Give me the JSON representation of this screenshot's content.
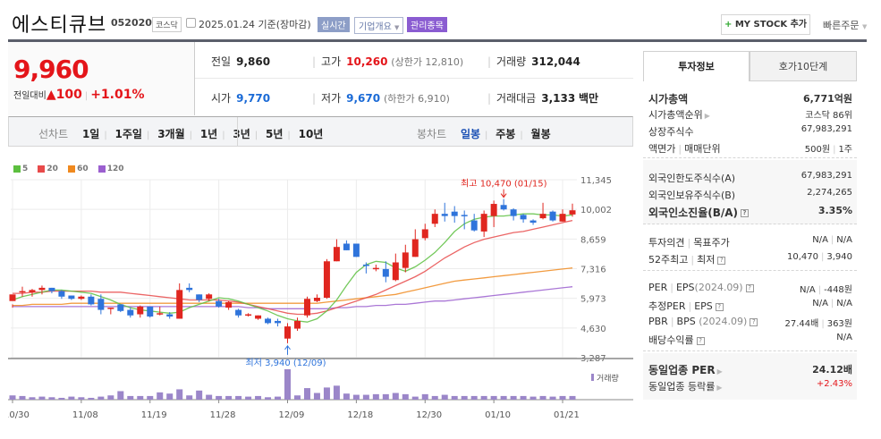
{
  "header": {
    "stock_name": "에스티큐브",
    "stock_code": "052020",
    "market": "코스닥",
    "date_label": "2025.01.24 기준(장마감)",
    "tag_realtime": "실시간",
    "tag_company": "기업개요",
    "tag_managed": "관리종목",
    "mystock_plus": "+",
    "mystock_label": "MY STOCK 추가",
    "quick_order": "빠른주문"
  },
  "price": {
    "current": "9,960",
    "change_label": "전일대비",
    "change_arrow": "▲",
    "change_value": "100",
    "change_pct": "+1.01%"
  },
  "stats": {
    "prev_close_label": "전일",
    "prev_close": "9,860",
    "high_label": "고가",
    "high": "10,260",
    "upper_limit": "(상한가 12,810)",
    "volume_label": "거래량",
    "volume": "312,044",
    "open_label": "시가",
    "open": "9,770",
    "low_label": "저가",
    "low": "9,670",
    "lower_limit": "(하한가 6,910)",
    "amount_label": "거래대금",
    "amount": "3,133",
    "amount_unit": "백만"
  },
  "range": {
    "line_label": "선차트",
    "line_items": [
      "1일",
      "1주일",
      "3개월",
      "1년",
      "3년",
      "5년",
      "10년"
    ],
    "candle_label": "봉차트",
    "candle_items": [
      "일봉",
      "주봉",
      "월봉"
    ],
    "candle_selected": 0
  },
  "side": {
    "tab_invest": "투자정보",
    "tab_orderbook": "호가10단계",
    "market_cap_label": "시가총액",
    "market_cap": "6,771억원",
    "cap_rank_label": "시가총액순위",
    "cap_rank": "코스닥 86위",
    "shares_label": "상장주식수",
    "shares": "67,983,291",
    "face_label": "액면가",
    "unit_label": "매매단위",
    "face_value": "500원",
    "unit_value": "1주",
    "foreign_limit_label": "외국인한도주식수(A)",
    "foreign_limit": "67,983,291",
    "foreign_hold_label": "외국인보유주식수(B)",
    "foreign_hold": "2,274,265",
    "foreign_ratio_label": "외국인소진율(B/A)",
    "foreign_ratio": "3.35%",
    "opinion_label": "투자의견",
    "target_label": "목표주가",
    "opinion": "N/A",
    "target": "N/A",
    "w52_high_label": "52주최고",
    "w52_low_label": "최저",
    "w52_high": "10,470",
    "w52_low": "3,940",
    "per_label": "PER",
    "eps_label": "EPS",
    "per_date": "(2024.09)",
    "per": "N/A",
    "eps": "-448원",
    "est_per_label": "추정PER",
    "est_eps_label": "EPS",
    "est_per": "N/A",
    "est_eps": "N/A",
    "pbr_label": "PBR",
    "bps_label": "BPS",
    "pbr_date": "(2024.09)",
    "pbr": "27.44배",
    "bps": "363원",
    "div_label": "배당수익률",
    "div": "N/A",
    "sector_per_label": "동일업종 PER",
    "sector_per": "24.12배",
    "sector_chg_label": "동일업종 등락률",
    "sector_chg": "+2.43%"
  },
  "chart_data": {
    "type": "candlestick",
    "title": "에스티큐브 일봉",
    "legend": [
      {
        "name": "5",
        "color": "#5cbf3f"
      },
      {
        "name": "20",
        "color": "#e84a4a"
      },
      {
        "name": "60",
        "color": "#f0891e"
      },
      {
        "name": "120",
        "color": "#9b5fcf"
      }
    ],
    "y_ticks": [
      "11,345",
      "10,002",
      "8,659",
      "7,316",
      "5,973",
      "4,630",
      "3,287"
    ],
    "y_range": [
      3287,
      11345
    ],
    "x_ticks": [
      {
        "label": "10/30",
        "index": 0
      },
      {
        "label": "11/08",
        "index": 7
      },
      {
        "label": "11/19",
        "index": 14
      },
      {
        "label": "11/28",
        "index": 21
      },
      {
        "label": "12/09",
        "index": 28
      },
      {
        "label": "12/18",
        "index": 35
      },
      {
        "label": "12/30",
        "index": 42
      },
      {
        "label": "01/10",
        "index": 49
      },
      {
        "label": "01/21",
        "index": 56
      }
    ],
    "high_annotation": "최고 10,470 (01/15)",
    "low_annotation": "최저 3,940 (12/09)",
    "volume_label": "거래량",
    "candles": [
      [
        5850,
        6150,
        5700,
        5550
      ],
      [
        6250,
        6300,
        6500,
        6050
      ],
      [
        6250,
        6350,
        6400,
        6050
      ],
      [
        6350,
        6450,
        6550,
        6150
      ],
      [
        6450,
        6300,
        6450,
        6200
      ],
      [
        6300,
        6050,
        6350,
        5950
      ],
      [
        6100,
        5950,
        6100,
        5900
      ],
      [
        5950,
        6050,
        6100,
        5900
      ],
      [
        6050,
        5700,
        6150,
        5650
      ],
      [
        5950,
        5450,
        6150,
        5250
      ],
      [
        5550,
        5550,
        5550,
        5250
      ],
      [
        5700,
        5400,
        5700,
        5350
      ],
      [
        5450,
        5200,
        5550,
        5100
      ],
      [
        5250,
        5600,
        5650,
        5100
      ],
      [
        5600,
        5150,
        5600,
        5100
      ],
      [
        5300,
        5300,
        5600,
        5200
      ],
      [
        5250,
        5150,
        5350,
        5050
      ],
      [
        5050,
        6350,
        6650,
        5050
      ],
      [
        6450,
        6350,
        6650,
        6250
      ],
      [
        6150,
        5900,
        6150,
        5800
      ],
      [
        5950,
        6150,
        6200,
        5850
      ],
      [
        5850,
        5600,
        5950,
        5550
      ],
      [
        5550,
        5800,
        5850,
        5450
      ],
      [
        5450,
        5200,
        5500,
        5100
      ],
      [
        5250,
        5250,
        5300,
        5150
      ],
      [
        5050,
        5200,
        5200,
        5000
      ],
      [
        5050,
        4850,
        5100,
        4800
      ],
      [
        4950,
        4850,
        5050,
        4700
      ],
      [
        4150,
        4700,
        4850,
        3940
      ],
      [
        4600,
        4950,
        5100,
        4500
      ],
      [
        5200,
        5950,
        6050,
        5100
      ],
      [
        5850,
        6000,
        6150,
        5800
      ],
      [
        6000,
        7650,
        7750,
        5950
      ],
      [
        7650,
        8300,
        8650,
        7650
      ],
      [
        8450,
        8150,
        8600,
        8150
      ],
      [
        8450,
        7850,
        8450,
        7850
      ],
      [
        7500,
        7450,
        7600,
        7100
      ],
      [
        7300,
        7350,
        7500,
        7200
      ],
      [
        7300,
        6950,
        7650,
        6700
      ],
      [
        6800,
        7600,
        8000,
        6750
      ],
      [
        7350,
        8050,
        8400,
        7150
      ],
      [
        7850,
        8650,
        9100,
        7850
      ],
      [
        8700,
        9100,
        9350,
        8600
      ],
      [
        9350,
        9800,
        10000,
        9200
      ],
      [
        9800,
        9700,
        10300,
        9450
      ],
      [
        9900,
        9700,
        10150,
        9400
      ],
      [
        9750,
        9700,
        9950,
        9100
      ],
      [
        9500,
        9050,
        9800,
        9000
      ],
      [
        9000,
        9800,
        9950,
        8750
      ],
      [
        9700,
        10250,
        10400,
        9200
      ],
      [
        10200,
        10000,
        10470,
        9950
      ],
      [
        10000,
        9700,
        10050,
        9500
      ],
      [
        9750,
        9550,
        9800,
        9400
      ],
      [
        9500,
        9400,
        9550,
        9300
      ],
      [
        9600,
        9800,
        10300,
        9550
      ],
      [
        9900,
        9500,
        9950,
        9450
      ],
      [
        9450,
        9800,
        10000,
        9450
      ],
      [
        9770,
        9960,
        10260,
        9670
      ]
    ],
    "ma5": [
      5900,
      6050,
      6150,
      6250,
      6350,
      6350,
      6300,
      6250,
      6200,
      6050,
      5900,
      5700,
      5550,
      5450,
      5400,
      5350,
      5300,
      5350,
      5550,
      5700,
      5850,
      6000,
      5950,
      5850,
      5700,
      5550,
      5400,
      5200,
      5050,
      4950,
      4900,
      5050,
      5400,
      5900,
      6550,
      7150,
      7500,
      7650,
      7600,
      7350,
      7200,
      7400,
      7700,
      8050,
      8500,
      9000,
      9350,
      9550,
      9650,
      9700,
      9700,
      9750,
      9800,
      9800,
      9750,
      9750,
      9700,
      9750
    ],
    "ma20": [
      6200,
      6200,
      6250,
      6250,
      6300,
      6300,
      6300,
      6300,
      6300,
      6250,
      6250,
      6250,
      6200,
      6150,
      6100,
      6050,
      6000,
      5950,
      5900,
      5900,
      5900,
      5900,
      5850,
      5800,
      5700,
      5600,
      5500,
      5400,
      5300,
      5250,
      5250,
      5300,
      5400,
      5550,
      5700,
      5850,
      6000,
      6150,
      6350,
      6550,
      6750,
      6950,
      7200,
      7500,
      7800,
      8050,
      8300,
      8500,
      8650,
      8750,
      8850,
      8950,
      9000,
      9100,
      9200,
      9300,
      9400,
      9500
    ],
    "ma60": [
      5650,
      5650,
      5700,
      5700,
      5700,
      5700,
      5750,
      5750,
      5750,
      5750,
      5750,
      5750,
      5750,
      5750,
      5750,
      5750,
      5750,
      5750,
      5750,
      5750,
      5750,
      5750,
      5750,
      5750,
      5750,
      5750,
      5750,
      5750,
      5750,
      5750,
      5750,
      5750,
      5800,
      5850,
      5900,
      5950,
      6000,
      6050,
      6100,
      6150,
      6250,
      6350,
      6450,
      6550,
      6650,
      6750,
      6800,
      6850,
      6900,
      6950,
      7000,
      7050,
      7100,
      7150,
      7200,
      7250,
      7300,
      7350
    ],
    "ma120": [
      5600,
      5600,
      5600,
      5600,
      5600,
      5600,
      5600,
      5600,
      5600,
      5600,
      5600,
      5600,
      5600,
      5600,
      5600,
      5600,
      5600,
      5600,
      5600,
      5600,
      5600,
      5600,
      5600,
      5600,
      5550,
      5550,
      5500,
      5500,
      5500,
      5500,
      5500,
      5500,
      5500,
      5550,
      5550,
      5600,
      5600,
      5650,
      5650,
      5700,
      5700,
      5750,
      5800,
      5850,
      5850,
      5900,
      5950,
      6000,
      6050,
      6100,
      6150,
      6200,
      6250,
      6300,
      6350,
      6400,
      6450,
      6500
    ],
    "volume": [
      14,
      12,
      8,
      10,
      8,
      6,
      10,
      8,
      6,
      10,
      14,
      28,
      12,
      12,
      12,
      24,
      20,
      34,
      14,
      30,
      16,
      12,
      12,
      12,
      10,
      12,
      8,
      10,
      100,
      14,
      38,
      22,
      40,
      46,
      20,
      16,
      16,
      18,
      18,
      22,
      18,
      10,
      18,
      12,
      16,
      12,
      12,
      12,
      12,
      12,
      12,
      12,
      12,
      10,
      12,
      10,
      12,
      12
    ]
  }
}
